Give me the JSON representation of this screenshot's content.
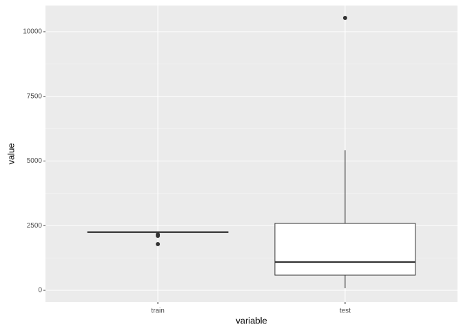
{
  "chart_data": {
    "type": "boxplot",
    "x_label": "variable",
    "y_label": "value",
    "categories": [
      "train",
      "test"
    ],
    "boxes": [
      {
        "lower": 2200,
        "q1": 2235,
        "median": 2250,
        "q3": 2265,
        "upper": 2280,
        "outliers": [
          2160,
          2107,
          1787
        ]
      },
      {
        "lower": 80,
        "q1": 587,
        "median": 1093,
        "q3": 2587,
        "upper": 5413,
        "outliers": [
          10533
        ]
      }
    ],
    "ylim": [
      -453,
      11013
    ],
    "yticks": [
      0,
      2500,
      5000,
      7500,
      10000
    ],
    "minor_yticks": [
      1250,
      3750,
      6250,
      8750
    ],
    "grid": true,
    "box_fill": "#ffffff",
    "box_stroke": "#333333",
    "panel_color": "#ebebeb"
  }
}
